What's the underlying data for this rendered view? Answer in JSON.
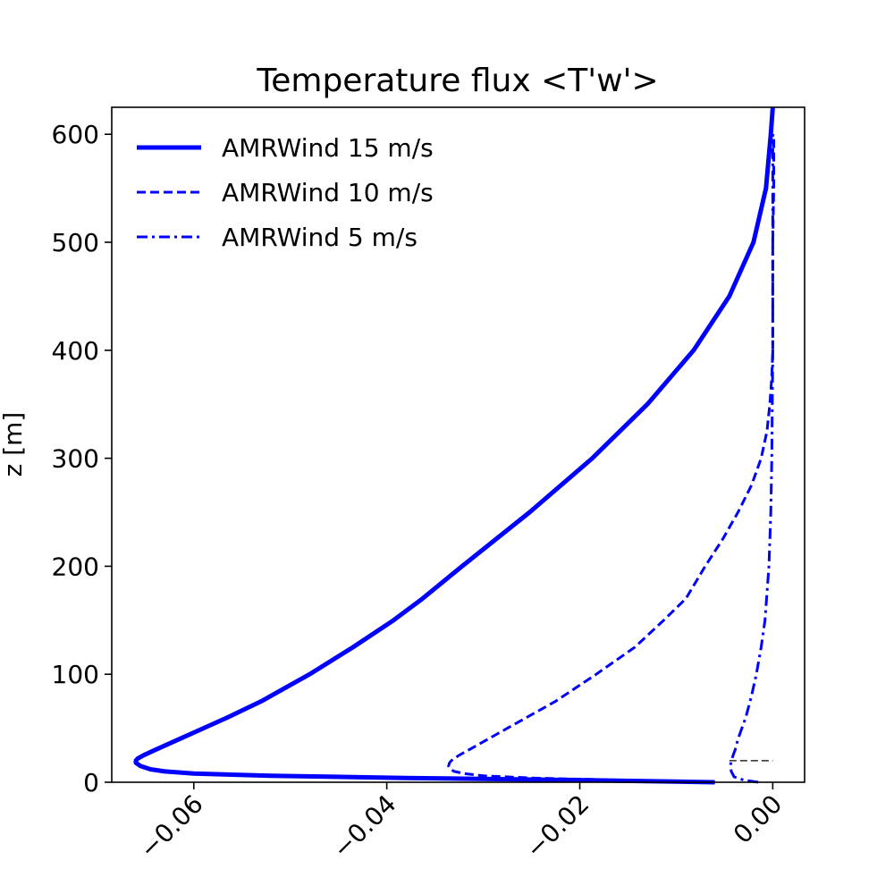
{
  "chart_data": {
    "type": "line",
    "title": "Temperature flux <T'w'>",
    "xlabel": "",
    "ylabel": "z [m]",
    "xlim": [
      -0.0685,
      0.0033
    ],
    "ylim": [
      0,
      625
    ],
    "x_ticks": [
      -0.06,
      -0.04,
      -0.02,
      0.0
    ],
    "x_tick_labels": [
      "−0.06",
      "−0.04",
      "−0.02",
      "0.00"
    ],
    "y_ticks": [
      0,
      100,
      200,
      300,
      400,
      500,
      600
    ],
    "y_tick_labels": [
      "0",
      "100",
      "200",
      "300",
      "400",
      "500",
      "600"
    ],
    "grid": false,
    "legend": "top-left",
    "colors": {
      "series": "#0000ff",
      "reference": "#000000"
    },
    "series": [
      {
        "name": "AMRWind 15 m/s",
        "style": "solid",
        "z": [
          0,
          2,
          4,
          6,
          8,
          10,
          12,
          15,
          18,
          20,
          22,
          25,
          30,
          40,
          50,
          60,
          75,
          85,
          100,
          125,
          150,
          170,
          200,
          250,
          300,
          350,
          400,
          450,
          500,
          550,
          600,
          625
        ],
        "flux": [
          -0.006,
          -0.02,
          -0.038,
          -0.052,
          -0.06,
          -0.063,
          -0.0645,
          -0.0655,
          -0.066,
          -0.066,
          -0.0658,
          -0.0652,
          -0.064,
          -0.0615,
          -0.059,
          -0.0565,
          -0.053,
          -0.051,
          -0.048,
          -0.0435,
          -0.0393,
          -0.0363,
          -0.0322,
          -0.0252,
          -0.0187,
          -0.013,
          -0.0082,
          -0.0045,
          -0.002,
          -0.0007,
          -0.0002,
          0.0
        ]
      },
      {
        "name": "AMRWind 10 m/s",
        "style": "dashed",
        "z": [
          0,
          2,
          4,
          6,
          8,
          10,
          12,
          15,
          18,
          20,
          22,
          25,
          30,
          40,
          50,
          60,
          75,
          100,
          125,
          150,
          170,
          200,
          225,
          250,
          275,
          300,
          325,
          350,
          375,
          400,
          450,
          500,
          550,
          600
        ],
        "flux": [
          -0.006,
          -0.016,
          -0.025,
          -0.03,
          -0.032,
          -0.033,
          -0.0334,
          -0.0336,
          -0.0335,
          -0.0333,
          -0.033,
          -0.0325,
          -0.0315,
          -0.0295,
          -0.0275,
          -0.0255,
          -0.0225,
          -0.0183,
          -0.0143,
          -0.0113,
          -0.009,
          -0.007,
          -0.0052,
          -0.0036,
          -0.0022,
          -0.0012,
          -0.0006,
          -0.0003,
          -0.0001,
          0.0,
          0.0,
          0.0,
          0.0001,
          0.0001
        ]
      },
      {
        "name": "AMRWind 5 m/s",
        "style": "dashdot",
        "z": [
          0,
          2,
          5,
          10,
          15,
          20,
          25,
          30,
          40,
          50,
          60,
          80,
          100,
          125,
          150,
          175,
          200,
          250,
          300,
          400,
          500,
          600
        ],
        "flux": [
          -0.0015,
          -0.003,
          -0.004,
          -0.0043,
          -0.0044,
          -0.0043,
          -0.0041,
          -0.0039,
          -0.0036,
          -0.0032,
          -0.0028,
          -0.0022,
          -0.0017,
          -0.0012,
          -0.0008,
          -0.0006,
          -0.0004,
          -0.0002,
          -0.0001,
          0.0,
          0.0,
          0.0
        ]
      }
    ],
    "reference_line": {
      "style": "dashed",
      "z": 20,
      "x_from": -0.0045,
      "x_to": 0.0
    }
  }
}
